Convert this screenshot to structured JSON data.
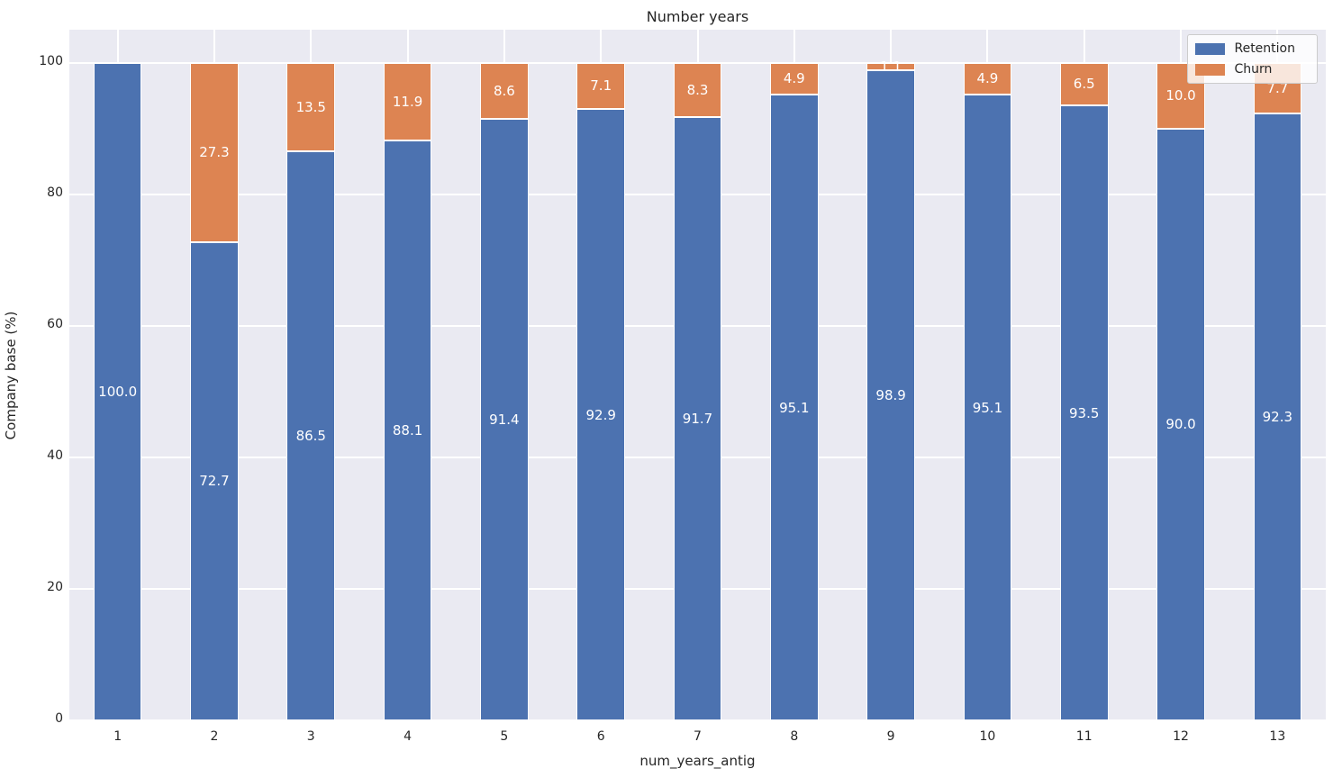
{
  "chart_data": {
    "type": "bar",
    "stacked": true,
    "title": "Number years",
    "xlabel": "num_years_antig",
    "ylabel": "Company base (%)",
    "categories": [
      "1",
      "2",
      "3",
      "4",
      "5",
      "6",
      "7",
      "8",
      "9",
      "10",
      "11",
      "12",
      "13"
    ],
    "series": [
      {
        "name": "Retention",
        "color": "#4c72b0",
        "values": [
          100.0,
          72.7,
          86.5,
          88.1,
          91.4,
          92.9,
          91.7,
          95.1,
          98.9,
          95.1,
          93.5,
          90.0,
          92.3
        ]
      },
      {
        "name": "Churn",
        "color": "#dd8452",
        "values": [
          0.0,
          27.3,
          13.5,
          11.9,
          8.6,
          7.1,
          8.3,
          4.9,
          1.1,
          4.9,
          6.5,
          10.0,
          7.7
        ]
      }
    ],
    "bar_labels": {
      "Retention": [
        "100.0",
        "72.7",
        "86.5",
        "88.1",
        "91.4",
        "92.9",
        "91.7",
        "95.1",
        "98.9",
        "95.1",
        "93.5",
        "90.0",
        "92.3"
      ],
      "Churn": [
        "",
        "27.3",
        "13.5",
        "11.9",
        "8.6",
        "7.1",
        "8.3",
        "4.9",
        "1.1",
        "4.9",
        "6.5",
        "10.0",
        "7.7"
      ]
    },
    "yticks": [
      0,
      20,
      40,
      60,
      80,
      100
    ],
    "ylim": [
      0,
      105
    ],
    "grid": true,
    "legend_position": "upper right",
    "colors": {
      "plot_background": "#eaeaf2",
      "gridline": "#ffffff",
      "bar_label_text": "#ffffff",
      "tick_text": "#262626",
      "legend_border": "#cccccc"
    }
  }
}
